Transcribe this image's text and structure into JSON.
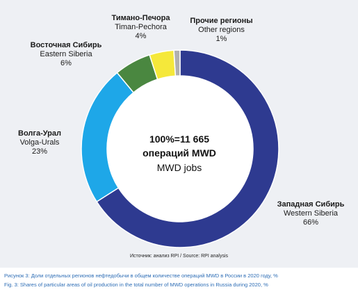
{
  "chart_data": {
    "type": "pie",
    "donut": true,
    "categories": [
      {
        "ru": "Западная Сибирь",
        "en": "Western Siberia",
        "label": "66%"
      },
      {
        "ru": "Волга-Урал",
        "en": "Volga-Urals",
        "label": "23%"
      },
      {
        "ru": "Восточная Сибирь",
        "en": "Eastern Siberia",
        "label": "6%"
      },
      {
        "ru": "Тимано-Печора",
        "en": "Timan-Pechora",
        "label": "4%"
      },
      {
        "ru": "Прочие регионы",
        "en": "Other regions",
        "label": "1%"
      }
    ],
    "values": [
      66,
      23,
      6,
      4,
      1
    ],
    "colors": [
      "#2e3a90",
      "#1ea7e8",
      "#4a8740",
      "#f5e83a",
      "#b0b0b0"
    ],
    "center": {
      "line1": "100%=11 665",
      "line2": "операций MWD",
      "line3": "MWD jobs"
    }
  },
  "source": "Источник: анализ RPI / Source: RPI analysis",
  "caption_ru": {
    "prefix": "Рисунок 3:",
    "text": " Доли отдельных регионов нефтедобычи в общем количестве операций MWD в России в 2020 году, %"
  },
  "caption_en": {
    "prefix": "Fig. 3:",
    "text": " Shares of particular areas of oil production in the total number of MWD operations in Russia during 2020, %"
  }
}
